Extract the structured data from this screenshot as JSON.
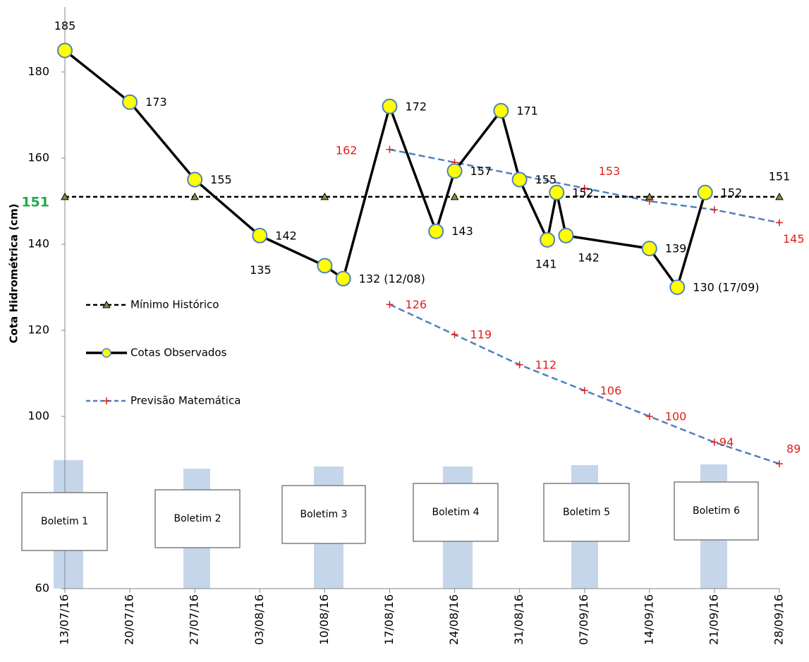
{
  "chart_data": {
    "type": "line",
    "y_label": "Cota Hidrométrica (cm)",
    "xlim": [
      "13/07/16",
      "28/09/16"
    ],
    "xticks": [
      "13/07/16",
      "20/07/16",
      "27/07/16",
      "03/08/16",
      "10/08/16",
      "17/08/16",
      "24/08/16",
      "31/08/16",
      "07/09/16",
      "14/09/16",
      "21/09/16",
      "28/09/16"
    ],
    "ylim": [
      60,
      190
    ],
    "yticks": [
      60,
      100,
      120,
      140,
      160,
      180
    ],
    "highlight_tick": {
      "value": 151,
      "label": "151",
      "color": "#1faa4b"
    },
    "series": [
      {
        "name": "Mínimo Histórico",
        "color": "#000000",
        "marker": "triangle",
        "marker_color": "#77933c",
        "dash": true,
        "x": [
          "13/07/16",
          "27/07/16",
          "10/08/16",
          "24/08/16",
          "14/09/16",
          "28/09/16"
        ],
        "values": [
          151,
          151,
          151,
          151,
          151,
          151
        ],
        "value_labels": [
          null,
          null,
          null,
          null,
          null,
          "151"
        ],
        "label_color": "#000000"
      },
      {
        "name": "Cotas Observados",
        "color": "#000000",
        "marker": "circle",
        "marker_color": "#ffff00",
        "dash": false,
        "x": [
          "13/07/16",
          "20/07/16",
          "27/07/16",
          "03/08/16",
          "10/08/16",
          "12/08/16",
          "17/08/16",
          "22/08/16",
          "24/08/16",
          "29/08/16",
          "31/08/16",
          "03/09/16",
          "04/09/16",
          "05/09/16",
          "14/09/16",
          "17/09/16",
          "20/09/16"
        ],
        "values": [
          185,
          173,
          155,
          142,
          135,
          132,
          172,
          143,
          157,
          171,
          155,
          141,
          152,
          142,
          139,
          130,
          152
        ],
        "value_labels": [
          "185",
          "173",
          "155",
          "142",
          "135",
          "132 (12/08)",
          "172",
          "143",
          "157",
          "171",
          "155",
          "141",
          "152",
          "142",
          "139",
          "130 (17/09)",
          "152"
        ],
        "label_color": "#000000"
      },
      {
        "name": "Previsão Matemática",
        "color": "#4f81bd",
        "marker": "plus",
        "marker_color": "#e0201b",
        "dash": true,
        "x": [
          "17/08/16",
          "24/08/16",
          "31/08/16",
          "07/09/16",
          "14/09/16",
          "21/09/16",
          "28/09/16"
        ],
        "values": [
          126,
          119,
          112,
          106,
          100,
          94,
          89
        ],
        "value_labels": [
          "126",
          "119",
          "112",
          "106",
          "100",
          "94",
          "89"
        ],
        "label_color": "#e0201b"
      },
      {
        "color": "#4f81bd",
        "marker": "plus",
        "marker_color": "#e0201b",
        "dash": true,
        "x": [
          "17/08/16",
          "24/08/16",
          "31/08/16",
          "07/09/16",
          "14/09/16",
          "21/09/16",
          "28/09/16"
        ],
        "values": [
          162,
          159,
          156,
          153,
          150,
          148,
          145
        ],
        "value_labels": [
          "162",
          null,
          null,
          "153",
          null,
          null,
          "145"
        ],
        "label_color": "#e0201b"
      }
    ],
    "bulletins": [
      "Boletim 1",
      "Boletim 2",
      "Boletim 3",
      "Boletim 4",
      "Boletim 5",
      "Boletim 6"
    ]
  }
}
